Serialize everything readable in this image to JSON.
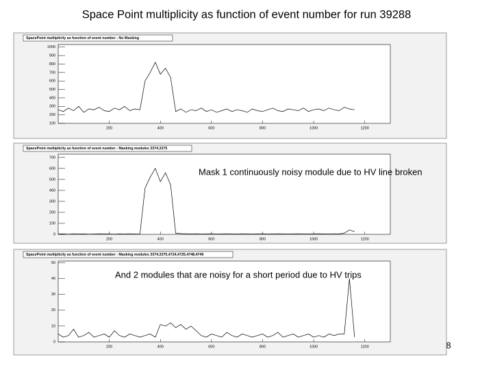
{
  "title": "Space Point multiplicity as function of event number for run 39288",
  "page_number": "8",
  "chart_data": [
    {
      "type": "line",
      "title": "SpacePoint multiplicity as function of event number - No Masking",
      "color": "#000000",
      "xlim": [
        0,
        1300
      ],
      "xticks": [
        200,
        400,
        600,
        800,
        1000,
        1200
      ],
      "ylim": [
        100,
        1030
      ],
      "yticks": [
        100,
        200,
        300,
        400,
        500,
        600,
        700,
        800,
        900,
        1000
      ],
      "x": [
        0,
        20,
        40,
        60,
        80,
        100,
        120,
        140,
        160,
        180,
        200,
        220,
        240,
        260,
        280,
        300,
        320,
        340,
        360,
        380,
        400,
        420,
        440,
        460,
        480,
        500,
        520,
        540,
        560,
        580,
        600,
        620,
        640,
        660,
        680,
        700,
        720,
        740,
        760,
        780,
        800,
        820,
        840,
        860,
        880,
        900,
        920,
        940,
        960,
        980,
        1000,
        1020,
        1040,
        1060,
        1080,
        1100,
        1120,
        1140,
        1160
      ],
      "values": [
        260,
        240,
        280,
        250,
        300,
        230,
        270,
        260,
        290,
        250,
        240,
        280,
        260,
        300,
        250,
        270,
        260,
        600,
        700,
        820,
        680,
        750,
        640,
        240,
        270,
        230,
        260,
        250,
        280,
        240,
        260,
        230,
        250,
        270,
        240,
        260,
        250,
        230,
        270,
        250,
        240,
        260,
        280,
        250,
        240,
        270,
        260,
        250,
        280,
        240,
        260,
        270,
        250,
        280,
        260,
        250,
        290,
        270,
        260
      ]
    },
    {
      "type": "line",
      "title": "SpacePoint multiplicity as function of event number - Masking modules 3374,3375",
      "annotation": "Mask 1 continuously noisy module due to HV line broken",
      "color": "#000000",
      "xlim": [
        0,
        1300
      ],
      "xticks": [
        200,
        400,
        600,
        800,
        1000,
        1200
      ],
      "ylim": [
        0,
        730
      ],
      "yticks": [
        0,
        100,
        200,
        300,
        400,
        500,
        600,
        700
      ],
      "x": [
        0,
        20,
        40,
        60,
        80,
        100,
        120,
        140,
        160,
        180,
        200,
        220,
        240,
        260,
        280,
        300,
        320,
        340,
        360,
        380,
        400,
        420,
        440,
        460,
        480,
        500,
        520,
        540,
        560,
        580,
        600,
        620,
        640,
        660,
        680,
        700,
        720,
        740,
        760,
        780,
        800,
        820,
        840,
        860,
        880,
        900,
        920,
        940,
        960,
        980,
        1000,
        1020,
        1040,
        1060,
        1080,
        1100,
        1120,
        1140,
        1160
      ],
      "values": [
        3,
        4,
        2,
        5,
        3,
        4,
        2,
        3,
        5,
        4,
        3,
        2,
        4,
        3,
        5,
        3,
        4,
        420,
        520,
        600,
        480,
        560,
        450,
        10,
        6,
        5,
        4,
        5,
        3,
        4,
        5,
        3,
        4,
        5,
        4,
        3,
        5,
        4,
        3,
        4,
        5,
        3,
        4,
        5,
        4,
        3,
        4,
        5,
        4,
        3,
        4,
        5,
        4,
        3,
        5,
        4,
        10,
        40,
        25
      ]
    },
    {
      "type": "line",
      "title": "SpacePoint multiplicity as function of event number - Masking modules 3374,3375,4724,4725,4748,4749",
      "annotation": "And 2 modules that are noisy for a short period due to HV trips",
      "color": "#000000",
      "xlim": [
        0,
        1300
      ],
      "xticks": [
        200,
        400,
        600,
        800,
        1000,
        1200
      ],
      "ylim": [
        0,
        51
      ],
      "yticks": [
        0,
        10,
        20,
        30,
        40,
        50
      ],
      "x": [
        0,
        20,
        40,
        60,
        80,
        100,
        120,
        140,
        160,
        180,
        200,
        220,
        240,
        260,
        280,
        300,
        320,
        340,
        360,
        380,
        400,
        420,
        440,
        460,
        480,
        500,
        520,
        540,
        560,
        580,
        600,
        620,
        640,
        660,
        680,
        700,
        720,
        740,
        760,
        780,
        800,
        820,
        840,
        860,
        880,
        900,
        920,
        940,
        960,
        980,
        1000,
        1020,
        1040,
        1060,
        1080,
        1100,
        1120,
        1140,
        1160
      ],
      "values": [
        5,
        3,
        4,
        8,
        3,
        4,
        6,
        3,
        4,
        5,
        3,
        7,
        4,
        3,
        5,
        4,
        3,
        4,
        5,
        3,
        11,
        10,
        12,
        9,
        11,
        8,
        10,
        7,
        4,
        3,
        5,
        4,
        3,
        6,
        4,
        3,
        5,
        4,
        3,
        4,
        5,
        3,
        4,
        6,
        3,
        4,
        5,
        3,
        4,
        5,
        3,
        4,
        3,
        5,
        4,
        5,
        5,
        40,
        3
      ]
    }
  ]
}
